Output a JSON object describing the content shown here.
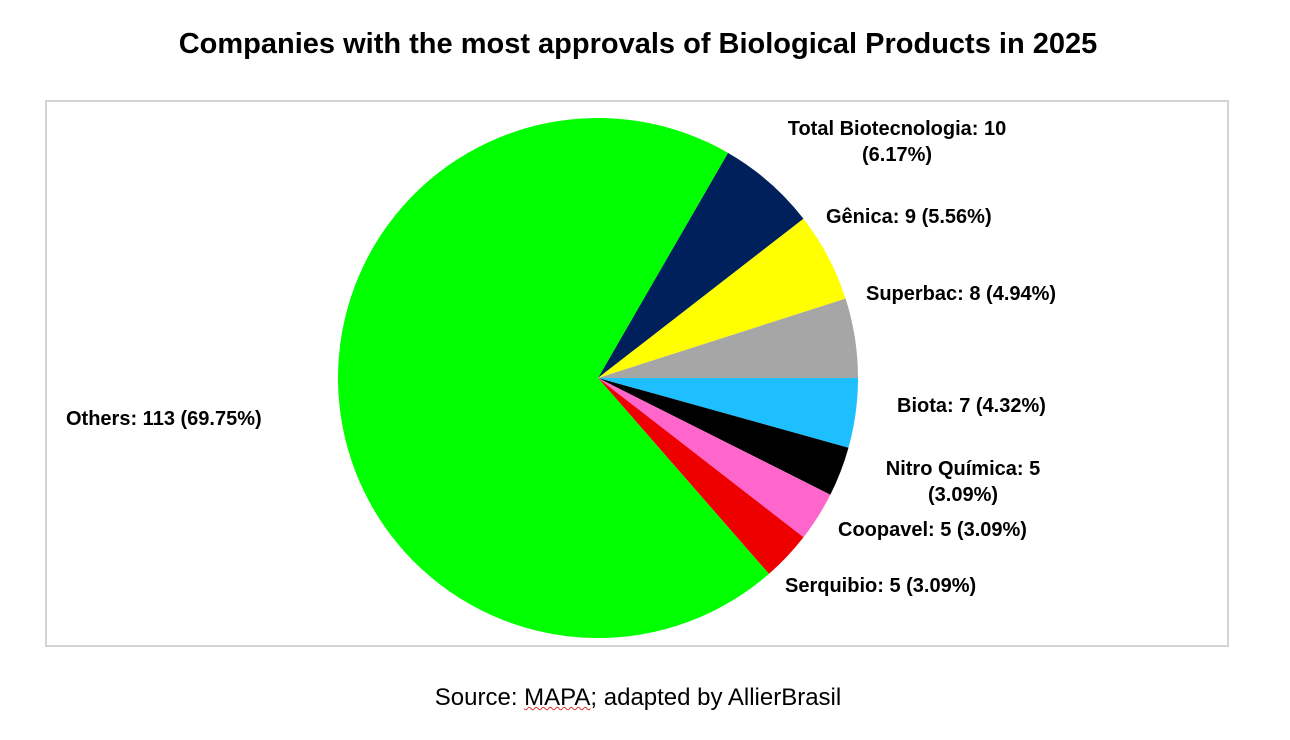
{
  "chart_data": {
    "type": "pie",
    "title": "Companies with the most approvals of Biological Products in 2025",
    "source": {
      "prefix": "Source: ",
      "org": "MAPA",
      "suffix": "; adapted by AllierBrasil"
    },
    "start_angle_deg": 30,
    "direction": "clockwise",
    "slices": [
      {
        "name": "Total Biotecnologia",
        "value": 10,
        "percent": "6.17%",
        "label": "Total Biotecnologia: 10 (6.17%)",
        "color": "#00205b"
      },
      {
        "name": "Gênica",
        "value": 9,
        "percent": "5.56%",
        "label": "Gênica: 9 (5.56%)",
        "color": "#ffff00"
      },
      {
        "name": "Superbac",
        "value": 8,
        "percent": "4.94%",
        "label": "Superbac: 8 (4.94%)",
        "color": "#a6a6a6"
      },
      {
        "name": "Biota",
        "value": 7,
        "percent": "4.32%",
        "label": "Biota: 7 (4.32%)",
        "color": "#1ebfff"
      },
      {
        "name": "Nitro Química",
        "value": 5,
        "percent": "3.09%",
        "label": "Nitro Química: 5 (3.09%)",
        "color": "#000000"
      },
      {
        "name": "Coopavel",
        "value": 5,
        "percent": "3.09%",
        "label": "Coopavel: 5 (3.09%)",
        "color": "#ff66cc"
      },
      {
        "name": "Serquibio",
        "value": 5,
        "percent": "3.09%",
        "label": "Serquibio: 5 (3.09%)",
        "color": "#ee0000"
      },
      {
        "name": "Others",
        "value": 113,
        "percent": "69.75%",
        "label": "Others: 113 (69.75%)",
        "color": "#00ff00"
      }
    ]
  }
}
